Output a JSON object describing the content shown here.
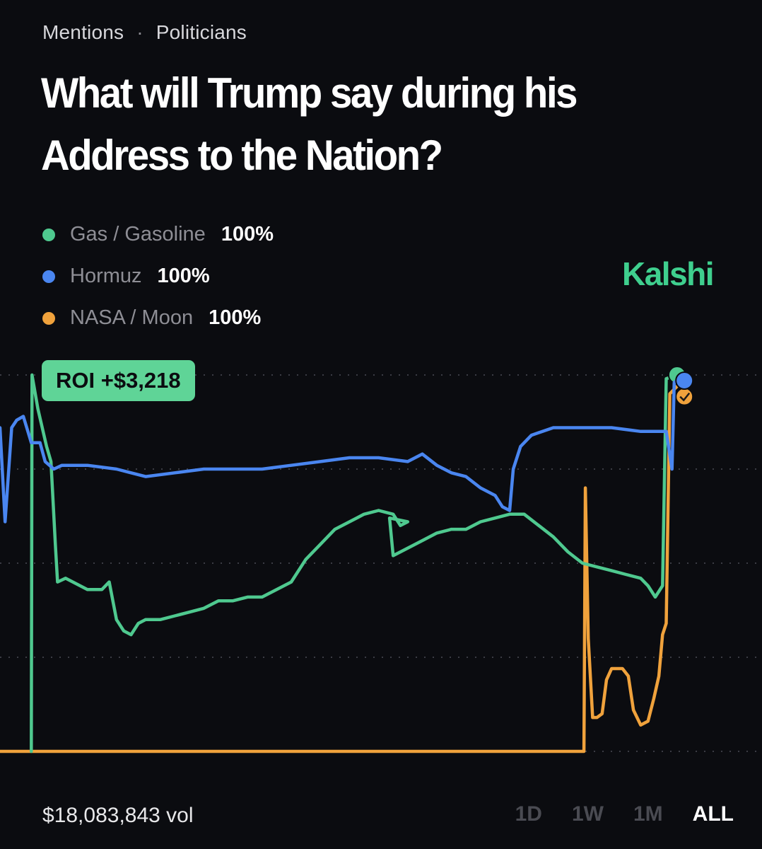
{
  "breadcrumb": {
    "category": "Mentions",
    "separator": "·",
    "subcategory": "Politicians"
  },
  "title": "What will Trump say during his Address to the Nation?",
  "legend": [
    {
      "name": "Gas / Gasoline",
      "value": "100%",
      "color": "#4fc98f"
    },
    {
      "name": "Hormuz",
      "value": "100%",
      "color": "#4a86f0"
    },
    {
      "name": "NASA / Moon",
      "value": "100%",
      "color": "#f0a23c"
    }
  ],
  "brand": "Kalshi",
  "roi_badge": "ROI +$3,218",
  "volume": "$18,083,843 vol",
  "time_ranges": [
    "1D",
    "1W",
    "1M",
    "ALL"
  ],
  "active_range": "ALL",
  "chart_data": {
    "type": "line",
    "ylim": [
      0,
      100
    ],
    "grid": true,
    "x_range": [
      0,
      100
    ],
    "series": [
      {
        "name": "Gas / Gasoline",
        "color": "#4fc98f",
        "points": [
          [
            4.3,
            0
          ],
          [
            4.4,
            100
          ],
          [
            5.2,
            91
          ],
          [
            6.4,
            81
          ],
          [
            7.0,
            77
          ],
          [
            7.6,
            55
          ],
          [
            7.9,
            45
          ],
          [
            9,
            46
          ],
          [
            12,
            43
          ],
          [
            14,
            43
          ],
          [
            15,
            45
          ],
          [
            16,
            35
          ],
          [
            17,
            32
          ],
          [
            18,
            31
          ],
          [
            19,
            34
          ],
          [
            20,
            35
          ],
          [
            22,
            35
          ],
          [
            24,
            36
          ],
          [
            26,
            37
          ],
          [
            28,
            38
          ],
          [
            30,
            40
          ],
          [
            32,
            40
          ],
          [
            34,
            41
          ],
          [
            36,
            41
          ],
          [
            38,
            43
          ],
          [
            40,
            45
          ],
          [
            42,
            51
          ],
          [
            44,
            55
          ],
          [
            46,
            59
          ],
          [
            48,
            61
          ],
          [
            50,
            63
          ],
          [
            52,
            64
          ],
          [
            54,
            63
          ],
          [
            55,
            60
          ],
          [
            56,
            61
          ],
          [
            53.5,
            62
          ],
          [
            54,
            52
          ],
          [
            56,
            54
          ],
          [
            58,
            56
          ],
          [
            60,
            58
          ],
          [
            62,
            59
          ],
          [
            64,
            59
          ],
          [
            66,
            61
          ],
          [
            68,
            62
          ],
          [
            70,
            63
          ],
          [
            72,
            63
          ],
          [
            74,
            60
          ],
          [
            76,
            57
          ],
          [
            78,
            53
          ],
          [
            80,
            50
          ],
          [
            82,
            49
          ],
          [
            84,
            48
          ],
          [
            86,
            47
          ],
          [
            88,
            46
          ],
          [
            89,
            44
          ],
          [
            90,
            41
          ],
          [
            91,
            44
          ],
          [
            91.5,
            99
          ],
          [
            93,
            100
          ]
        ]
      },
      {
        "name": "Hormuz",
        "color": "#4a86f0",
        "points": [
          [
            0,
            86
          ],
          [
            0.7,
            61
          ],
          [
            1.6,
            86
          ],
          [
            2.3,
            88
          ],
          [
            3.2,
            89
          ],
          [
            4.3,
            82
          ],
          [
            5.5,
            82
          ],
          [
            6.2,
            77
          ],
          [
            7.4,
            75
          ],
          [
            8.5,
            76
          ],
          [
            12,
            76
          ],
          [
            16,
            75
          ],
          [
            18,
            74
          ],
          [
            20,
            73
          ],
          [
            24,
            74
          ],
          [
            28,
            75
          ],
          [
            32,
            75
          ],
          [
            36,
            75
          ],
          [
            40,
            76
          ],
          [
            44,
            77
          ],
          [
            48,
            78
          ],
          [
            52,
            78
          ],
          [
            56,
            77
          ],
          [
            58,
            79
          ],
          [
            60,
            76
          ],
          [
            62,
            74
          ],
          [
            64,
            73
          ],
          [
            66,
            70
          ],
          [
            68,
            68
          ],
          [
            69,
            65
          ],
          [
            70,
            64
          ],
          [
            70.5,
            75
          ],
          [
            71.5,
            81
          ],
          [
            73,
            84
          ],
          [
            76,
            86
          ],
          [
            80,
            86
          ],
          [
            84,
            86
          ],
          [
            88,
            85
          ],
          [
            91.5,
            85
          ],
          [
            92.3,
            75
          ],
          [
            92.6,
            98
          ],
          [
            94,
            100
          ]
        ]
      },
      {
        "name": "NASA / Moon",
        "color": "#f0a23c",
        "points": [
          [
            0,
            0
          ],
          [
            80.2,
            0
          ],
          [
            80.4,
            70
          ],
          [
            80.8,
            30
          ],
          [
            81.4,
            9
          ],
          [
            82,
            9
          ],
          [
            82.7,
            10
          ],
          [
            83.3,
            19
          ],
          [
            84,
            22
          ],
          [
            85.5,
            22
          ],
          [
            86.3,
            20
          ],
          [
            87,
            11
          ],
          [
            88,
            7
          ],
          [
            89,
            8
          ],
          [
            89.8,
            14
          ],
          [
            90.5,
            20
          ],
          [
            91,
            31
          ],
          [
            91.5,
            34
          ],
          [
            92,
            95
          ],
          [
            93,
            97
          ],
          [
            94,
            98
          ]
        ]
      }
    ]
  }
}
